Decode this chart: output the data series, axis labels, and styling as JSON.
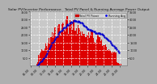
{
  "title": "Solar PV/Inverter Performance   Total PV Panel & Running Average Power Output",
  "bg_color": "#b0b0b0",
  "plot_bg_color": "#c8c8c8",
  "bar_color": "#dd0000",
  "line_color": "#0000cc",
  "grid_color": "#ffffff",
  "ylim": [
    0,
    3500
  ],
  "yticks_left": [
    500,
    1000,
    1500,
    2000,
    2500,
    3000,
    3500
  ],
  "yticks_right": [
    500,
    1000,
    1500,
    2000,
    2500,
    3000,
    3500
  ],
  "n_bars": 96,
  "peak_bar": 38,
  "peak_value": 3400,
  "title_fontsize": 3.2,
  "tick_fontsize": 2.5,
  "legend_fontsize": 2.4,
  "legend_color_box": "#cc0000",
  "legend_color_line": "#0000ee"
}
